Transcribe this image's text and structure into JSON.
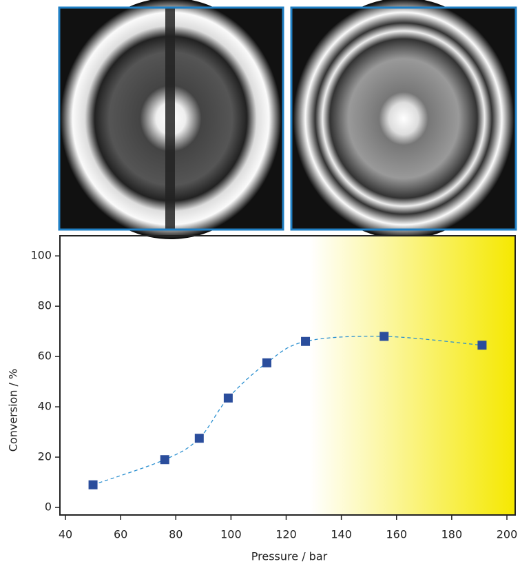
{
  "chart_data": {
    "type": "scatter",
    "x_label": "Pressure / bar",
    "y_label": "Conversion / %",
    "series": [
      {
        "color": "#2a4d9c",
        "x": [
          50,
          76,
          88.5,
          99,
          113,
          127,
          155.5,
          191
        ],
        "values": [
          9,
          19,
          27.5,
          43.5,
          57.5,
          66,
          68,
          64.5
        ]
      }
    ],
    "trend_color": "#2a8fd0",
    "xlim": [
      38,
      203
    ],
    "ylim": [
      -3,
      108
    ],
    "xticks": [
      40,
      60,
      80,
      100,
      120,
      140,
      160,
      180,
      200
    ],
    "yticks": [
      0,
      20,
      40,
      60,
      80,
      100
    ]
  }
}
